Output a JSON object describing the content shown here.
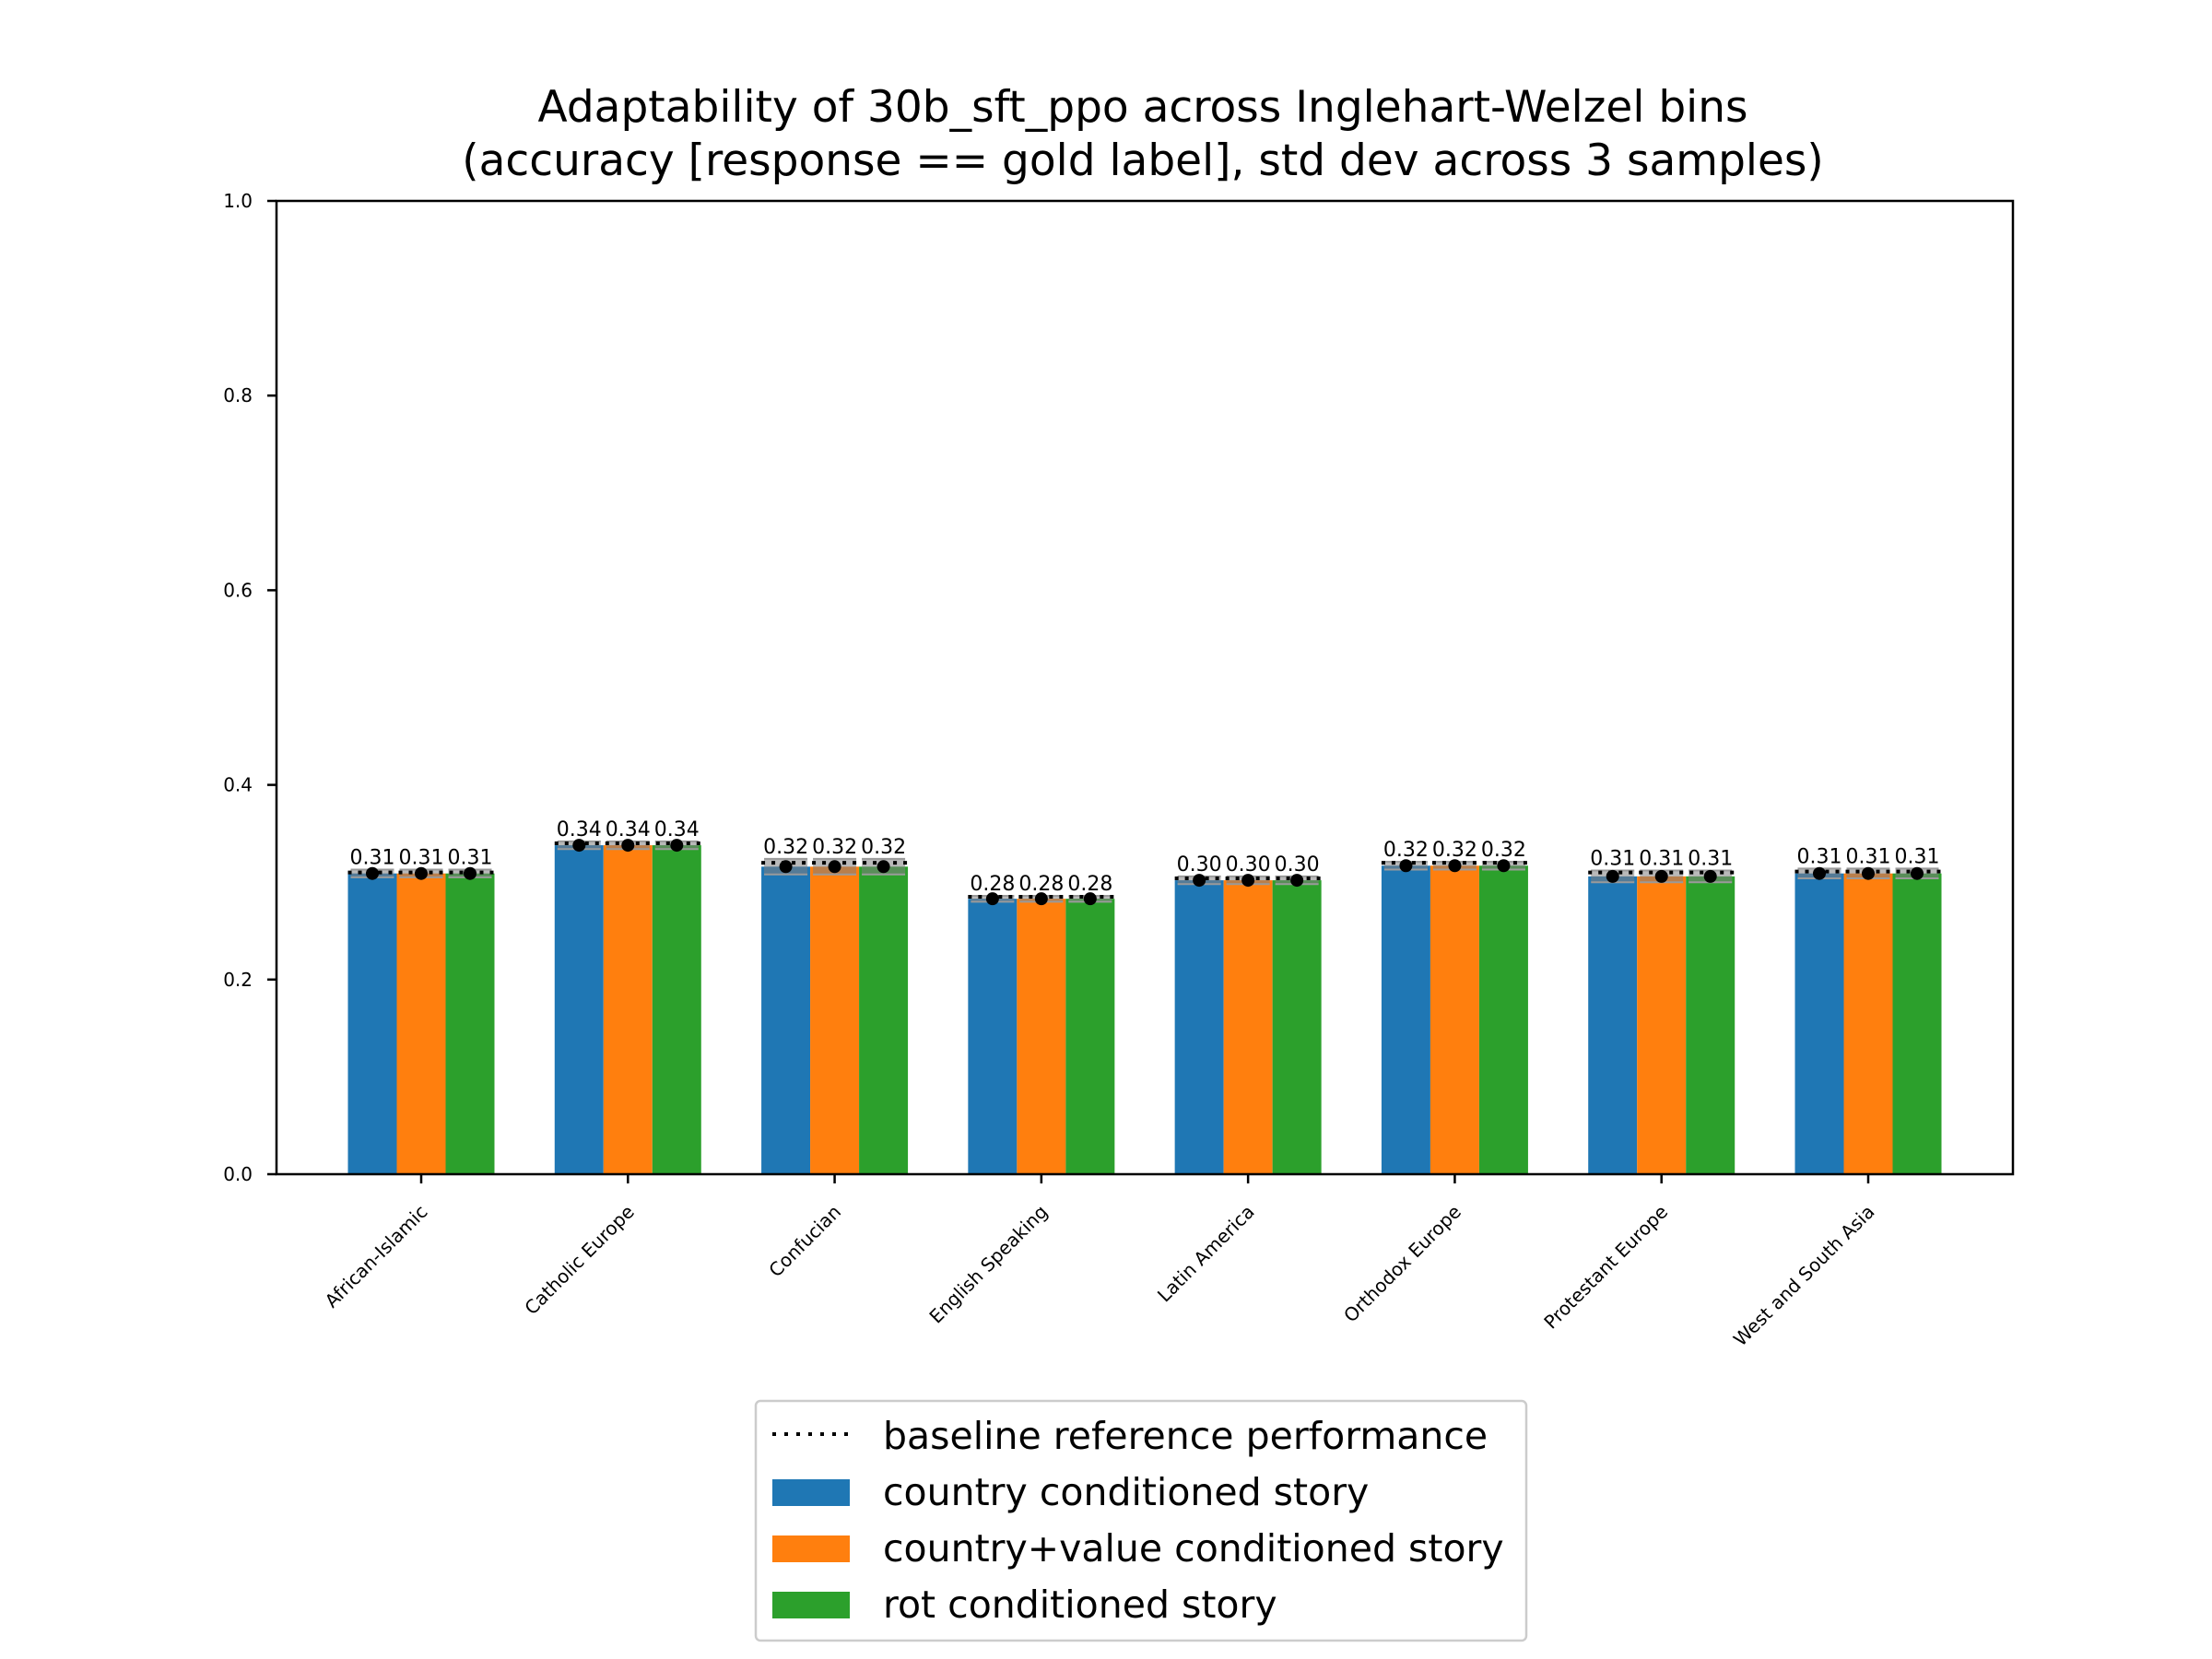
{
  "chart_data": {
    "type": "bar",
    "title_line1": "Adaptability of 30b_sft_ppo across Inglehart-Welzel bins",
    "title_line2": "(accuracy [response == gold label], std dev across 3 samples)",
    "xlabel": "",
    "ylabel": "",
    "ylim": [
      0,
      1.0
    ],
    "yticks": [
      0.0,
      0.2,
      0.4,
      0.6,
      0.8,
      1.0
    ],
    "ytick_labels": [
      "0.0",
      "0.2",
      "0.4",
      "0.6",
      "0.8",
      "1.0"
    ],
    "categories": [
      "African-Islamic",
      "Catholic Europe",
      "Confucian",
      "English Speaking",
      "Latin America",
      "Orthodox Europe",
      "Protestant Europe",
      "West and South Asia"
    ],
    "baseline": {
      "name": "baseline reference performance",
      "values": [
        0.31,
        0.34,
        0.32,
        0.285,
        0.304,
        0.32,
        0.31,
        0.311
      ]
    },
    "series": [
      {
        "name": "country conditioned story",
        "color": "#1f77b4",
        "values": [
          0.309,
          0.338,
          0.316,
          0.283,
          0.302,
          0.317,
          0.306,
          0.309
        ],
        "stds": [
          0.004,
          0.004,
          0.008,
          0.003,
          0.004,
          0.004,
          0.006,
          0.005
        ],
        "labels": [
          "0.31",
          "0.34",
          "0.32",
          "0.28",
          "0.30",
          "0.32",
          "0.31",
          "0.31"
        ]
      },
      {
        "name": "country+value conditioned story",
        "color": "#ff7f0e",
        "values": [
          0.309,
          0.338,
          0.316,
          0.283,
          0.302,
          0.317,
          0.306,
          0.309
        ],
        "stds": [
          0.004,
          0.004,
          0.008,
          0.003,
          0.004,
          0.004,
          0.006,
          0.005
        ],
        "labels": [
          "0.31",
          "0.34",
          "0.32",
          "0.28",
          "0.30",
          "0.32",
          "0.31",
          "0.31"
        ]
      },
      {
        "name": "rot conditioned story",
        "color": "#2ca02c",
        "values": [
          0.309,
          0.338,
          0.316,
          0.283,
          0.302,
          0.317,
          0.306,
          0.309
        ],
        "stds": [
          0.004,
          0.004,
          0.008,
          0.003,
          0.004,
          0.004,
          0.006,
          0.005
        ],
        "labels": [
          "0.31",
          "0.34",
          "0.32",
          "0.28",
          "0.30",
          "0.32",
          "0.31",
          "0.31"
        ]
      }
    ],
    "legend_position": "below plot"
  }
}
